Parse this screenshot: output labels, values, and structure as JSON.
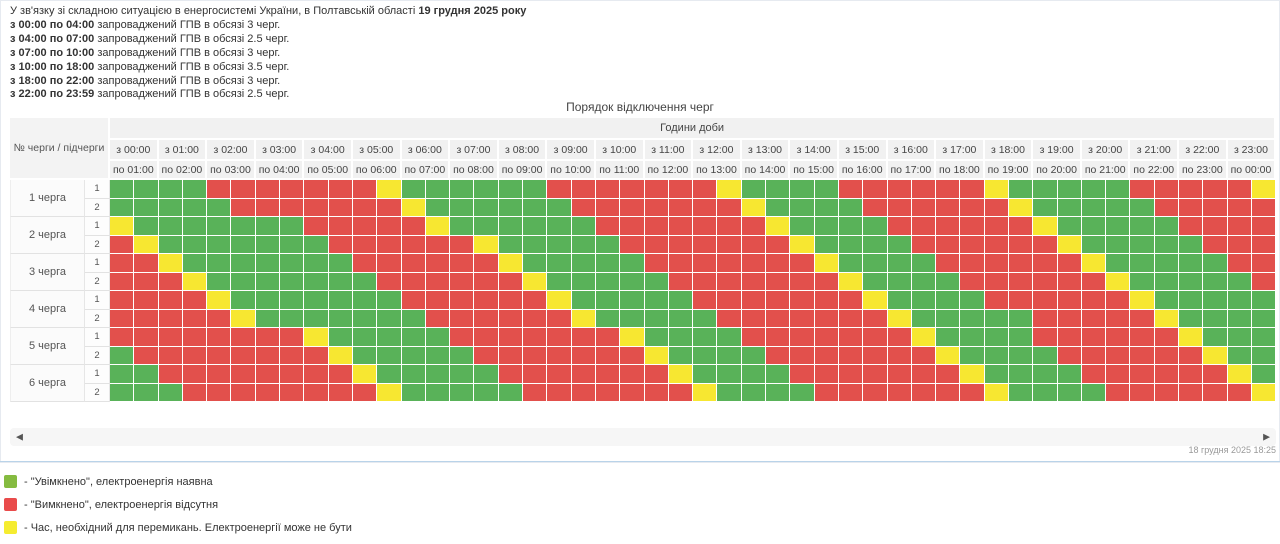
{
  "intro": {
    "line1_text": "У зв'язку зі складною ситуацією в енергосистемі України, в Полтавській області",
    "line1_bold": "19 грудня 2025 року",
    "lines": [
      {
        "bold": "з 00:00 по 04:00",
        "text": "запроваджений ГПВ в обсязі 3 черг."
      },
      {
        "bold": "з 04:00 по 07:00",
        "text": "запроваджений ГПВ в обсязі 2.5 черг."
      },
      {
        "bold": "з 07:00 по 10:00",
        "text": "запроваджений ГПВ в обсязі 3 черг."
      },
      {
        "bold": "з 10:00 по 18:00",
        "text": "запроваджений ГПВ в обсязі 3.5 черг."
      },
      {
        "bold": "з 18:00 по 22:00",
        "text": "запроваджений ГПВ в обсязі 3 черг."
      },
      {
        "bold": "з 22:00 по 23:59",
        "text": "запроваджений ГПВ в обсязі 2.5 черг."
      }
    ]
  },
  "table": {
    "title": "Порядок відключення черг",
    "corner_label": "№ черги / підчерги",
    "hours_header": "Години доби",
    "hour_from": [
      "з 00:00",
      "з 01:00",
      "з 02:00",
      "з 03:00",
      "з 04:00",
      "з 05:00",
      "з 06:00",
      "з 07:00",
      "з 08:00",
      "з 09:00",
      "з 10:00",
      "з 11:00",
      "з 12:00",
      "з 13:00",
      "з 14:00",
      "з 15:00",
      "з 16:00",
      "з 17:00",
      "з 18:00",
      "з 19:00",
      "з 20:00",
      "з 21:00",
      "з 22:00",
      "з 23:00"
    ],
    "hour_to": [
      "по 01:00",
      "по 02:00",
      "по 03:00",
      "по 04:00",
      "по 05:00",
      "по 06:00",
      "по 07:00",
      "по 08:00",
      "по 09:00",
      "по 10:00",
      "по 11:00",
      "по 12:00",
      "по 13:00",
      "по 14:00",
      "по 15:00",
      "по 16:00",
      "по 17:00",
      "по 18:00",
      "по 19:00",
      "по 20:00",
      "по 21:00",
      "по 22:00",
      "по 23:00",
      "по 00:00"
    ],
    "rows": [
      {
        "queue": "1 черга",
        "sub": "1",
        "slots": "GGGGRRRRRRRYGGGGGGRRRRRRRYGGGGRRRRRRYGGGGGRRRRRY"
      },
      {
        "queue": "1 черга",
        "sub": "2",
        "slots": "GGGGGRRRRRRRYGGGGGGRRRRRRRYGGGGRRRRRRYGGGGGRRRRR"
      },
      {
        "queue": "2 черга",
        "sub": "1",
        "slots": "YGGGGGGGRRRRRYGGGGGGRRRRRRRYGGGGRRRRRRYGGGGGRRRR"
      },
      {
        "queue": "2 черга",
        "sub": "2",
        "slots": "RYGGGGGGGRRRRRRYGGGGGRRRRRRRYGGGGRRRRRRYGGGGGRRR"
      },
      {
        "queue": "3 черга",
        "sub": "1",
        "slots": "RRYGGGGGGGRRRRRRYGGGGGRRRRRRRYGGGGRRRRRRYGGGGGRR"
      },
      {
        "queue": "3 черга",
        "sub": "2",
        "slots": "RRRYGGGGGGGRRRRRRYGGGGGRRRRRRRYGGGGRRRRRRYGGGGGR"
      },
      {
        "queue": "4 черга",
        "sub": "1",
        "slots": "RRRRYGGGGGGGRRRRRRYGGGGGRRRRRRRYGGGGRRRRRRYGGGGG"
      },
      {
        "queue": "4 черга",
        "sub": "2",
        "slots": "RRRRRYGGGGGGGRRRRRRYGGGGGRRRRRRRYGGGGGRRRRRYGGGG"
      },
      {
        "queue": "5 черга",
        "sub": "1",
        "slots": "RRRRRRRRYGGGGGRRRRRRRYGGGGRRRRRRRYGGGGRRRRRRYGGG"
      },
      {
        "queue": "5 черга",
        "sub": "2",
        "slots": "GRRRRRRRRYGGGGGRRRRRRRYGGGGRRRRRRRYGGGGRRRRRRYGG"
      },
      {
        "queue": "6 черга",
        "sub": "1",
        "slots": "GGRRRRRRRRYGGGGGRRRRRRRYGGGGRRRRRRRYGGGGRRRRRRYG"
      },
      {
        "queue": "6 черга",
        "sub": "2",
        "slots": "GGGRRRRRRRRYGGGGGRRRRRRRYGGGGRRRRRRRYGGGGRRRRRRY"
      }
    ]
  },
  "colors": {
    "on": "#59b259",
    "off": "#e2504c",
    "switch": "#f7e731"
  },
  "legend": [
    {
      "key": "on",
      "color": "#85bb40",
      "label": "- \"Увімкнено\", електроенергія наявна"
    },
    {
      "key": "off",
      "color": "#e94b4b",
      "label": "- \"Вимкнено\", електроенергія відсутня"
    },
    {
      "key": "switch",
      "color": "#f5ec30",
      "label": "- Час, необхідний для перемикань. Електроенергії може не бути"
    }
  ],
  "scroll": {
    "left": "◀",
    "right": "▶"
  },
  "footer": {
    "timestamp": "18 грудня 2025 18:25"
  }
}
